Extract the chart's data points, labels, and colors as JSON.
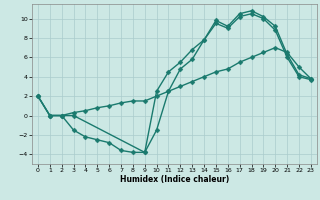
{
  "xlabel": "Humidex (Indice chaleur)",
  "bg_color": "#cce8e4",
  "grid_color": "#aacccc",
  "line_color": "#1a7a6e",
  "markersize": 2.5,
  "linewidth": 1.0,
  "xlim": [
    -0.5,
    23.5
  ],
  "ylim": [
    -5.0,
    11.5
  ],
  "xticks": [
    0,
    1,
    2,
    3,
    4,
    5,
    6,
    7,
    8,
    9,
    10,
    11,
    12,
    13,
    14,
    15,
    16,
    17,
    18,
    19,
    20,
    21,
    22,
    23
  ],
  "yticks": [
    -4,
    -2,
    0,
    2,
    4,
    6,
    8,
    10
  ],
  "line1_x": [
    0,
    1,
    2,
    3,
    4,
    5,
    6,
    7,
    8,
    9,
    10,
    11,
    12,
    13,
    14,
    15,
    16,
    17,
    18,
    19,
    20,
    21,
    22,
    23
  ],
  "line1_y": [
    2,
    0,
    0,
    -1.5,
    -2.2,
    -2.5,
    -2.8,
    -3.6,
    -3.8,
    -3.8,
    -1.5,
    2.5,
    4.8,
    5.8,
    7.8,
    9.8,
    9.2,
    10.5,
    10.8,
    10.2,
    9.2,
    6.3,
    4.2,
    3.8
  ],
  "line2_x": [
    0,
    1,
    2,
    3,
    9,
    10,
    11,
    12,
    13,
    14,
    15,
    16,
    17,
    18,
    19,
    20,
    21,
    22,
    23
  ],
  "line2_y": [
    2,
    0,
    0,
    0,
    -3.8,
    2.5,
    4.5,
    5.5,
    6.8,
    7.8,
    9.5,
    9.0,
    10.2,
    10.5,
    10.0,
    8.8,
    6.0,
    4.0,
    3.7
  ],
  "line3_x": [
    0,
    1,
    2,
    3,
    4,
    5,
    6,
    7,
    8,
    9,
    10,
    11,
    12,
    13,
    14,
    15,
    16,
    17,
    18,
    19,
    20,
    21,
    22,
    23
  ],
  "line3_y": [
    2,
    0,
    0,
    0.3,
    0.5,
    0.8,
    1.0,
    1.3,
    1.5,
    1.5,
    2.0,
    2.5,
    3.0,
    3.5,
    4.0,
    4.5,
    4.8,
    5.5,
    6.0,
    6.5,
    7.0,
    6.5,
    5.0,
    3.8
  ]
}
